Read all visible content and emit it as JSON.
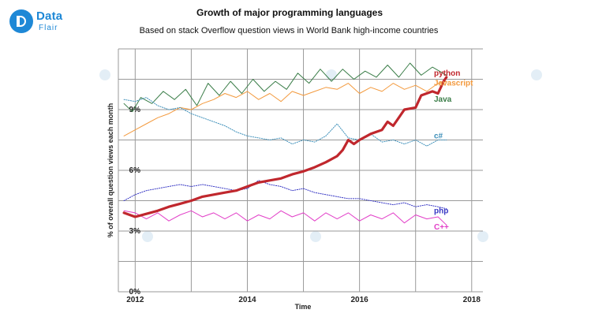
{
  "brand": {
    "name": "Data",
    "sub": "Flair",
    "color": "#1e88d6"
  },
  "chart_data": {
    "type": "line",
    "title": "Growth of major programming languages",
    "subtitle": "Based on stack Overflow question views in World Bank high-income countries",
    "xlabel": "Time",
    "ylabel": "% of overall question views each month",
    "xlim": [
      2011.7,
      2018.2
    ],
    "ylim": [
      0,
      12
    ],
    "x_ticks": [
      {
        "value": 2012,
        "label": "2012"
      },
      {
        "value": 2014,
        "label": "2014"
      },
      {
        "value": 2016,
        "label": "2016"
      },
      {
        "value": 2018,
        "label": "2018"
      }
    ],
    "y_ticks": [
      {
        "value": 0,
        "label": "0%"
      },
      {
        "value": 3,
        "label": "3%"
      },
      {
        "value": 6,
        "label": "6%"
      },
      {
        "value": 9,
        "label": "9%"
      }
    ],
    "grid": true,
    "series": [
      {
        "name": "python",
        "color": "#c0272d",
        "style": "solid",
        "width": 3.2,
        "label_y": 10.8,
        "points": [
          [
            2011.8,
            3.9
          ],
          [
            2012.0,
            3.7
          ],
          [
            2012.2,
            3.85
          ],
          [
            2012.4,
            4.0
          ],
          [
            2012.6,
            4.2
          ],
          [
            2012.8,
            4.35
          ],
          [
            2013.0,
            4.5
          ],
          [
            2013.2,
            4.7
          ],
          [
            2013.4,
            4.8
          ],
          [
            2013.6,
            4.9
          ],
          [
            2013.8,
            5.0
          ],
          [
            2014.0,
            5.2
          ],
          [
            2014.2,
            5.4
          ],
          [
            2014.4,
            5.5
          ],
          [
            2014.6,
            5.6
          ],
          [
            2014.8,
            5.8
          ],
          [
            2015.0,
            5.95
          ],
          [
            2015.2,
            6.15
          ],
          [
            2015.4,
            6.4
          ],
          [
            2015.6,
            6.7
          ],
          [
            2015.7,
            7.0
          ],
          [
            2015.8,
            7.5
          ],
          [
            2015.9,
            7.3
          ],
          [
            2016.0,
            7.5
          ],
          [
            2016.2,
            7.8
          ],
          [
            2016.4,
            8.0
          ],
          [
            2016.5,
            8.4
          ],
          [
            2016.6,
            8.2
          ],
          [
            2016.8,
            9.0
          ],
          [
            2017.0,
            9.1
          ],
          [
            2017.1,
            9.7
          ],
          [
            2017.3,
            9.9
          ],
          [
            2017.4,
            9.8
          ],
          [
            2017.5,
            10.4
          ],
          [
            2017.55,
            10.6
          ]
        ]
      },
      {
        "name": "javascript",
        "display_name": "Javascript",
        "color": "#f39a3e",
        "style": "solid",
        "width": 1.0,
        "label_y": 10.3,
        "points": [
          [
            2011.8,
            7.7
          ],
          [
            2012.0,
            8.0
          ],
          [
            2012.2,
            8.3
          ],
          [
            2012.4,
            8.6
          ],
          [
            2012.6,
            8.8
          ],
          [
            2012.8,
            9.1
          ],
          [
            2013.0,
            9.0
          ],
          [
            2013.2,
            9.3
          ],
          [
            2013.4,
            9.5
          ],
          [
            2013.6,
            9.8
          ],
          [
            2013.8,
            9.6
          ],
          [
            2014.0,
            9.9
          ],
          [
            2014.2,
            9.5
          ],
          [
            2014.4,
            9.8
          ],
          [
            2014.6,
            9.4
          ],
          [
            2014.8,
            9.9
          ],
          [
            2015.0,
            9.7
          ],
          [
            2015.2,
            9.9
          ],
          [
            2015.4,
            10.1
          ],
          [
            2015.6,
            10.0
          ],
          [
            2015.8,
            10.3
          ],
          [
            2016.0,
            9.8
          ],
          [
            2016.2,
            10.1
          ],
          [
            2016.4,
            9.9
          ],
          [
            2016.6,
            10.3
          ],
          [
            2016.8,
            10.0
          ],
          [
            2017.0,
            10.2
          ],
          [
            2017.2,
            9.9
          ],
          [
            2017.4,
            10.3
          ],
          [
            2017.55,
            10.4
          ]
        ]
      },
      {
        "name": "java",
        "display_name": "Java",
        "color": "#3a7d48",
        "style": "solid",
        "width": 1.0,
        "label_y": 9.5,
        "points": [
          [
            2011.8,
            9.3
          ],
          [
            2011.95,
            8.9
          ],
          [
            2012.1,
            9.6
          ],
          [
            2012.3,
            9.3
          ],
          [
            2012.5,
            9.9
          ],
          [
            2012.7,
            9.5
          ],
          [
            2012.9,
            10.0
          ],
          [
            2013.1,
            9.2
          ],
          [
            2013.3,
            10.3
          ],
          [
            2013.5,
            9.7
          ],
          [
            2013.7,
            10.4
          ],
          [
            2013.9,
            9.8
          ],
          [
            2014.1,
            10.5
          ],
          [
            2014.3,
            9.9
          ],
          [
            2014.5,
            10.4
          ],
          [
            2014.7,
            10.0
          ],
          [
            2014.9,
            10.8
          ],
          [
            2015.1,
            10.3
          ],
          [
            2015.3,
            11.0
          ],
          [
            2015.5,
            10.4
          ],
          [
            2015.7,
            11.0
          ],
          [
            2015.9,
            10.5
          ],
          [
            2016.1,
            10.9
          ],
          [
            2016.3,
            10.6
          ],
          [
            2016.5,
            11.2
          ],
          [
            2016.7,
            10.6
          ],
          [
            2016.9,
            11.3
          ],
          [
            2017.1,
            10.7
          ],
          [
            2017.3,
            11.1
          ],
          [
            2017.55,
            10.7
          ]
        ]
      },
      {
        "name": "c#",
        "color": "#3d8fb9",
        "style": "dotted",
        "width": 1.0,
        "label_y": 7.7,
        "points": [
          [
            2011.8,
            9.5
          ],
          [
            2012.0,
            9.4
          ],
          [
            2012.2,
            9.6
          ],
          [
            2012.4,
            9.2
          ],
          [
            2012.6,
            9.0
          ],
          [
            2012.8,
            9.1
          ],
          [
            2013.0,
            8.8
          ],
          [
            2013.2,
            8.6
          ],
          [
            2013.4,
            8.4
          ],
          [
            2013.6,
            8.2
          ],
          [
            2013.8,
            7.9
          ],
          [
            2014.0,
            7.7
          ],
          [
            2014.2,
            7.6
          ],
          [
            2014.4,
            7.5
          ],
          [
            2014.6,
            7.6
          ],
          [
            2014.8,
            7.3
          ],
          [
            2015.0,
            7.5
          ],
          [
            2015.2,
            7.4
          ],
          [
            2015.4,
            7.7
          ],
          [
            2015.6,
            8.3
          ],
          [
            2015.8,
            7.6
          ],
          [
            2016.0,
            7.5
          ],
          [
            2016.2,
            7.8
          ],
          [
            2016.4,
            7.4
          ],
          [
            2016.6,
            7.5
          ],
          [
            2016.8,
            7.3
          ],
          [
            2017.0,
            7.5
          ],
          [
            2017.2,
            7.2
          ],
          [
            2017.4,
            7.5
          ],
          [
            2017.55,
            7.5
          ]
        ]
      },
      {
        "name": "php",
        "color": "#3535c4",
        "style": "dotted",
        "width": 1.0,
        "label_y": 4.0,
        "points": [
          [
            2011.8,
            4.5
          ],
          [
            2012.0,
            4.8
          ],
          [
            2012.2,
            5.0
          ],
          [
            2012.4,
            5.1
          ],
          [
            2012.6,
            5.2
          ],
          [
            2012.8,
            5.3
          ],
          [
            2013.0,
            5.2
          ],
          [
            2013.2,
            5.3
          ],
          [
            2013.4,
            5.2
          ],
          [
            2013.6,
            5.1
          ],
          [
            2013.8,
            5.0
          ],
          [
            2014.0,
            5.1
          ],
          [
            2014.2,
            5.5
          ],
          [
            2014.4,
            5.3
          ],
          [
            2014.6,
            5.2
          ],
          [
            2014.8,
            5.0
          ],
          [
            2015.0,
            5.1
          ],
          [
            2015.2,
            4.9
          ],
          [
            2015.4,
            4.8
          ],
          [
            2015.6,
            4.7
          ],
          [
            2015.8,
            4.6
          ],
          [
            2016.0,
            4.6
          ],
          [
            2016.2,
            4.5
          ],
          [
            2016.4,
            4.4
          ],
          [
            2016.6,
            4.3
          ],
          [
            2016.8,
            4.4
          ],
          [
            2017.0,
            4.2
          ],
          [
            2017.2,
            4.3
          ],
          [
            2017.4,
            4.2
          ],
          [
            2017.55,
            4.1
          ]
        ]
      },
      {
        "name": "c++",
        "display_name": "C++",
        "color": "#e23fc8",
        "style": "solid",
        "width": 1.0,
        "label_y": 3.2,
        "points": [
          [
            2011.8,
            4.0
          ],
          [
            2012.0,
            3.9
          ],
          [
            2012.2,
            3.6
          ],
          [
            2012.4,
            3.9
          ],
          [
            2012.6,
            3.5
          ],
          [
            2012.8,
            3.8
          ],
          [
            2013.0,
            4.0
          ],
          [
            2013.2,
            3.7
          ],
          [
            2013.4,
            3.9
          ],
          [
            2013.6,
            3.6
          ],
          [
            2013.8,
            3.9
          ],
          [
            2014.0,
            3.5
          ],
          [
            2014.2,
            3.8
          ],
          [
            2014.4,
            3.6
          ],
          [
            2014.6,
            4.0
          ],
          [
            2014.8,
            3.7
          ],
          [
            2015.0,
            3.9
          ],
          [
            2015.2,
            3.5
          ],
          [
            2015.4,
            3.9
          ],
          [
            2015.6,
            3.6
          ],
          [
            2015.8,
            3.9
          ],
          [
            2016.0,
            3.5
          ],
          [
            2016.2,
            3.8
          ],
          [
            2016.4,
            3.6
          ],
          [
            2016.6,
            3.9
          ],
          [
            2016.8,
            3.4
          ],
          [
            2017.0,
            3.8
          ],
          [
            2017.2,
            3.6
          ],
          [
            2017.4,
            3.7
          ],
          [
            2017.55,
            3.3
          ]
        ]
      }
    ]
  }
}
